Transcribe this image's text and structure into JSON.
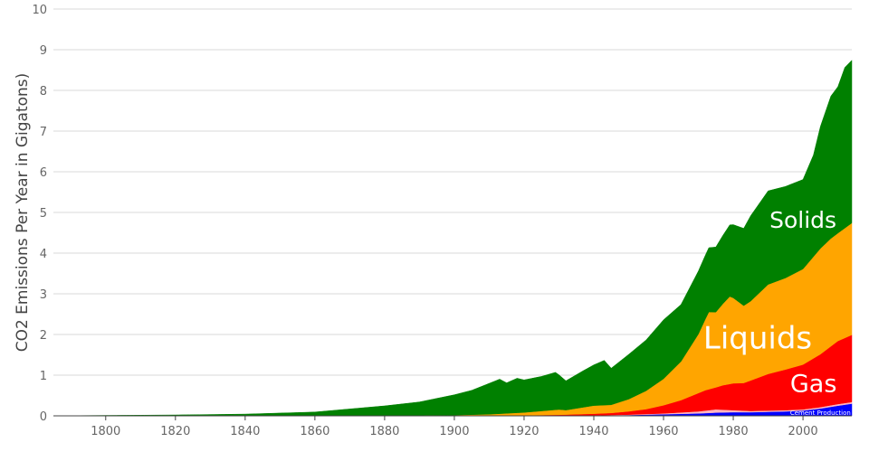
{
  "chart_data": {
    "type": "area",
    "stacked": true,
    "title": "",
    "xlabel": "",
    "ylabel": "CO2 Emissions Per Year in Gigatons)",
    "xlim": [
      1785,
      2014
    ],
    "ylim": [
      0,
      10
    ],
    "x_ticks": [
      "1800",
      "1820",
      "1840",
      "1860",
      "1880",
      "1900",
      "1920",
      "1940",
      "1960",
      "1980",
      "2000"
    ],
    "y_ticks": [
      "0",
      "1",
      "2",
      "3",
      "4",
      "5",
      "6",
      "7",
      "8",
      "9",
      "10"
    ],
    "grid": true,
    "legend": "none",
    "series": [
      {
        "name": "Cement Production",
        "color": "#0000ff",
        "points": [
          [
            1785,
            0
          ],
          [
            1900,
            0
          ],
          [
            1930,
            0.005
          ],
          [
            1940,
            0.01
          ],
          [
            1950,
            0.02
          ],
          [
            1960,
            0.04
          ],
          [
            1970,
            0.06
          ],
          [
            1975,
            0.08
          ],
          [
            1980,
            0.09
          ],
          [
            1985,
            0.09
          ],
          [
            1990,
            0.1
          ],
          [
            1995,
            0.11
          ],
          [
            2000,
            0.13
          ],
          [
            2005,
            0.18
          ],
          [
            2010,
            0.25
          ],
          [
            2014,
            0.3
          ]
        ]
      },
      {
        "name": "Flaring",
        "color": "#ffb6c1",
        "points": [
          [
            1785,
            0
          ],
          [
            1920,
            0
          ],
          [
            1940,
            0.002
          ],
          [
            1950,
            0.01
          ],
          [
            1960,
            0.02
          ],
          [
            1970,
            0.05
          ],
          [
            1975,
            0.08
          ],
          [
            1980,
            0.05
          ],
          [
            1985,
            0.03
          ],
          [
            1990,
            0.03
          ],
          [
            2000,
            0.03
          ],
          [
            2010,
            0.04
          ],
          [
            2014,
            0.04
          ]
        ]
      },
      {
        "name": "Gas",
        "color": "#ff0000",
        "points": [
          [
            1785,
            0
          ],
          [
            1880,
            0
          ],
          [
            1900,
            0.003
          ],
          [
            1910,
            0.007
          ],
          [
            1920,
            0.01
          ],
          [
            1930,
            0.02
          ],
          [
            1940,
            0.04
          ],
          [
            1945,
            0.05
          ],
          [
            1950,
            0.08
          ],
          [
            1955,
            0.12
          ],
          [
            1960,
            0.2
          ],
          [
            1965,
            0.3
          ],
          [
            1970,
            0.45
          ],
          [
            1972,
            0.5
          ],
          [
            1975,
            0.54
          ],
          [
            1977,
            0.6
          ],
          [
            1980,
            0.66
          ],
          [
            1983,
            0.68
          ],
          [
            1985,
            0.75
          ],
          [
            1990,
            0.9
          ],
          [
            1995,
            1.0
          ],
          [
            2000,
            1.1
          ],
          [
            2005,
            1.3
          ],
          [
            2010,
            1.55
          ],
          [
            2014,
            1.65
          ]
        ]
      },
      {
        "name": "Liquids",
        "color": "#ffa500",
        "points": [
          [
            1785,
            0
          ],
          [
            1880,
            0.005
          ],
          [
            1900,
            0.015
          ],
          [
            1910,
            0.03
          ],
          [
            1920,
            0.07
          ],
          [
            1930,
            0.13
          ],
          [
            1932,
            0.11
          ],
          [
            1940,
            0.2
          ],
          [
            1945,
            0.2
          ],
          [
            1950,
            0.3
          ],
          [
            1955,
            0.45
          ],
          [
            1960,
            0.65
          ],
          [
            1965,
            0.95
          ],
          [
            1970,
            1.45
          ],
          [
            1973,
            1.9
          ],
          [
            1975,
            1.85
          ],
          [
            1977,
            2.0
          ],
          [
            1979,
            2.15
          ],
          [
            1980,
            2.1
          ],
          [
            1983,
            1.9
          ],
          [
            1985,
            1.95
          ],
          [
            1988,
            2.1
          ],
          [
            1990,
            2.2
          ],
          [
            1995,
            2.25
          ],
          [
            2000,
            2.35
          ],
          [
            2005,
            2.6
          ],
          [
            2008,
            2.65
          ],
          [
            2010,
            2.65
          ],
          [
            2014,
            2.75
          ]
        ]
      },
      {
        "name": "Solids",
        "color": "#008000",
        "points": [
          [
            1785,
            0
          ],
          [
            1800,
            0.01
          ],
          [
            1820,
            0.02
          ],
          [
            1840,
            0.04
          ],
          [
            1860,
            0.09
          ],
          [
            1880,
            0.24
          ],
          [
            1890,
            0.33
          ],
          [
            1900,
            0.5
          ],
          [
            1905,
            0.6
          ],
          [
            1910,
            0.76
          ],
          [
            1913,
            0.85
          ],
          [
            1915,
            0.75
          ],
          [
            1918,
            0.85
          ],
          [
            1920,
            0.8
          ],
          [
            1925,
            0.85
          ],
          [
            1929,
            0.92
          ],
          [
            1932,
            0.72
          ],
          [
            1937,
            0.9
          ],
          [
            1940,
            1.0
          ],
          [
            1943,
            1.1
          ],
          [
            1945,
            0.9
          ],
          [
            1950,
            1.1
          ],
          [
            1955,
            1.25
          ],
          [
            1960,
            1.45
          ],
          [
            1965,
            1.4
          ],
          [
            1970,
            1.55
          ],
          [
            1975,
            1.6
          ],
          [
            1980,
            1.8
          ],
          [
            1983,
            1.9
          ],
          [
            1985,
            2.1
          ],
          [
            1990,
            2.3
          ],
          [
            1995,
            2.25
          ],
          [
            2000,
            2.2
          ],
          [
            2003,
            2.5
          ],
          [
            2005,
            3.0
          ],
          [
            2008,
            3.5
          ],
          [
            2010,
            3.6
          ],
          [
            2012,
            3.95
          ],
          [
            2014,
            4.0
          ]
        ]
      }
    ],
    "annotations": [
      {
        "text": "Solids",
        "series": "Solids"
      },
      {
        "text": "Liquids",
        "series": "Liquids"
      },
      {
        "text": "Gas",
        "series": "Gas"
      },
      {
        "text": "Cement Production",
        "series": "Cement Production"
      }
    ]
  }
}
